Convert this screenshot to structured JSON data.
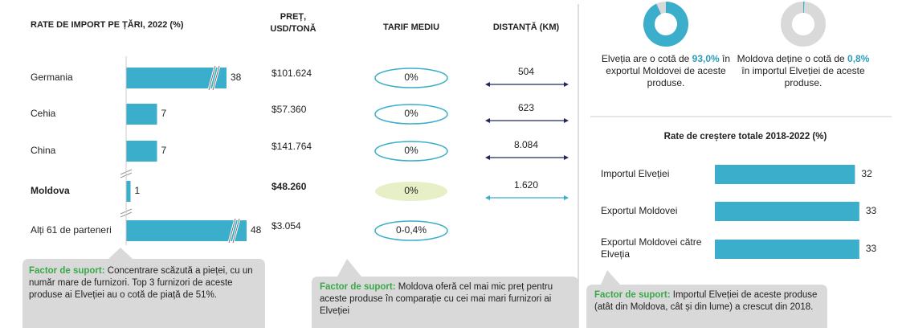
{
  "import_table": {
    "title": "RATE DE IMPORT PE ȚĂRI, 2022 (%)",
    "headers": [
      "PREȚ, USD/TONĂ",
      "TARIF MEDIU",
      "DISTANȚĂ (KM)"
    ],
    "rows": [
      {
        "country": "Germania",
        "share": 38,
        "price": "$101.624",
        "tariff": "0%",
        "distance": "504"
      },
      {
        "country": "Cehia",
        "share": 7,
        "price": "$57.360",
        "tariff": "0%",
        "distance": "623"
      },
      {
        "country": "China",
        "share": 7,
        "price": "$141.764",
        "tariff": "0%",
        "distance": "8.084"
      },
      {
        "country": "Moldova",
        "share": 1,
        "price": "$48.260",
        "tariff": "0%",
        "distance": "1.620"
      },
      {
        "country": "Alți 61 de parteneri",
        "share": 48,
        "price": "$3.054",
        "tariff": "0-0,4%",
        "distance": null
      }
    ]
  },
  "donuts": [
    {
      "value": 93.0,
      "value_label": "93,0%",
      "text_before": "Elveția are o cotă de",
      "text_after": "în exportul Moldovei de aceste produse."
    },
    {
      "value": 0.8,
      "value_label": "0,8%",
      "text_before": "Moldova deține o cotă de",
      "text_after": "în importul Elveției de aceste produse."
    }
  ],
  "chart_data": {
    "type": "bar",
    "title": "Rate de creștere totale 2018-2022 (%)",
    "categories": [
      "Importul Elveției",
      "Exportul Moldovei",
      "Exportul Moldovei către Elveția"
    ],
    "values": [
      32,
      33,
      33
    ],
    "color": "#3aaecb"
  },
  "notes": [
    {
      "label": "Factor de suport:",
      "text": "Concentrare scăzută a pieței, cu un număr mare de furnizori. Top 3 furnizori de aceste produse ai Elveției au o cotă de piață de 51%."
    },
    {
      "label": "Factor de suport:",
      "text": "Moldova oferă cel mai mic preț pentru aceste produse în comparație cu cei mai mari furnizori ai Elveției"
    },
    {
      "label": "Factor de suport:",
      "text": "Importul Elveției de aceste produse (atât din Moldova, cât și din lume) a crescut din 2018."
    }
  ]
}
